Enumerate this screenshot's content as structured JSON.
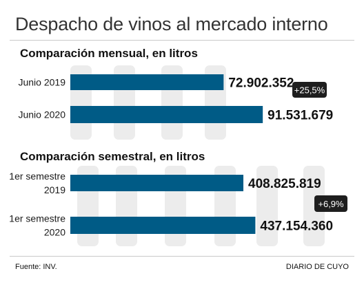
{
  "header": {
    "title": "Despacho de vinos al mercado interno"
  },
  "footer": {
    "source": "Fuente: INV.",
    "brand": "DIARIO DE CUYO"
  },
  "chart_data": [
    {
      "type": "bar",
      "orientation": "horizontal",
      "title": "Comparación mensual, en litros",
      "categories": [
        [
          "Junio 2019"
        ],
        [
          "Junio 2020"
        ]
      ],
      "values": [
        72902352,
        91531679
      ],
      "value_labels": [
        "72.902.352",
        "91.531.679"
      ],
      "change_badge": "+25,5%",
      "bar_color": "#005b86",
      "xlim": [
        0,
        100000000
      ]
    },
    {
      "type": "bar",
      "orientation": "horizontal",
      "title": "Comparación semestral, en litros",
      "categories": [
        [
          "1er semestre",
          "2019"
        ],
        [
          "1er semestre",
          "2020"
        ]
      ],
      "values": [
        408825819,
        437154360
      ],
      "value_labels": [
        "408.825.819",
        "437.154.360"
      ],
      "change_badge": "+6,9%",
      "bar_color": "#005b86",
      "xlim": [
        0,
        500000000
      ]
    }
  ]
}
